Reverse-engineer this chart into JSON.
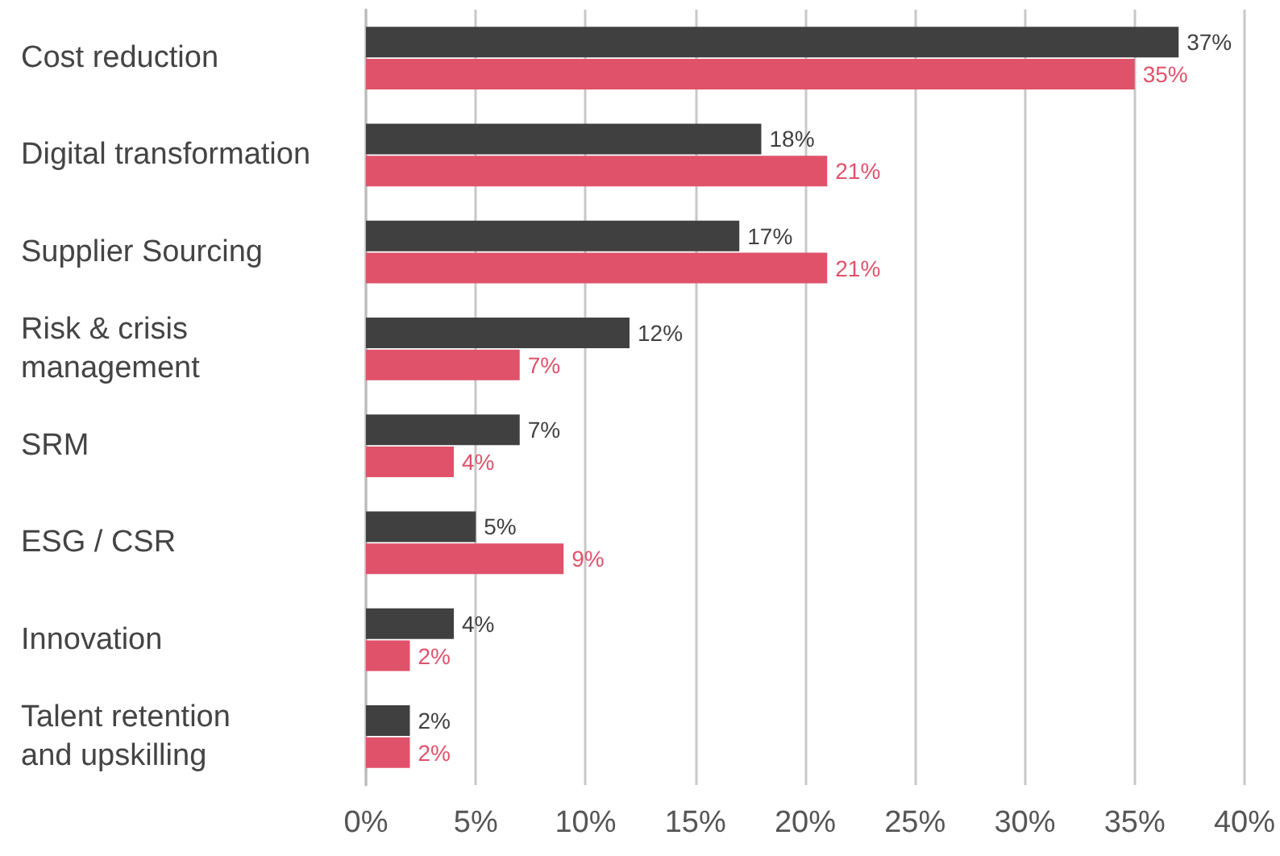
{
  "chart_data": {
    "type": "bar",
    "orientation": "horizontal",
    "categories": [
      "Cost reduction",
      "Digital transformation",
      "Supplier Sourcing",
      "Risk & crisis\nmanagement",
      "SRM",
      "ESG / CSR",
      "Innovation",
      "Talent retention\nand upskilling"
    ],
    "series": [
      {
        "color": "#404040",
        "values": [
          37,
          18,
          17,
          12,
          7,
          5,
          4,
          2
        ],
        "value_labels": [
          "37%",
          "18%",
          "17%",
          "12%",
          "7%",
          "5%",
          "4%",
          "2%"
        ]
      },
      {
        "color": "#e0526a",
        "values": [
          35,
          21,
          21,
          7,
          4,
          9,
          2,
          2
        ],
        "value_labels": [
          "35%",
          "21%",
          "21%",
          "7%",
          "4%",
          "9%",
          "2%",
          "2%"
        ]
      }
    ],
    "xlim": [
      0,
      40
    ],
    "xticks": [
      {
        "value": 0,
        "label": "0%"
      },
      {
        "value": 5,
        "label": "5%"
      },
      {
        "value": 10,
        "label": "10%"
      },
      {
        "value": 15,
        "label": "15%"
      },
      {
        "value": 20,
        "label": "20%"
      },
      {
        "value": 25,
        "label": "25%"
      },
      {
        "value": 30,
        "label": "30%"
      },
      {
        "value": 35,
        "label": "35%"
      },
      {
        "value": 40,
        "label": "40%"
      }
    ],
    "grid": "x"
  }
}
